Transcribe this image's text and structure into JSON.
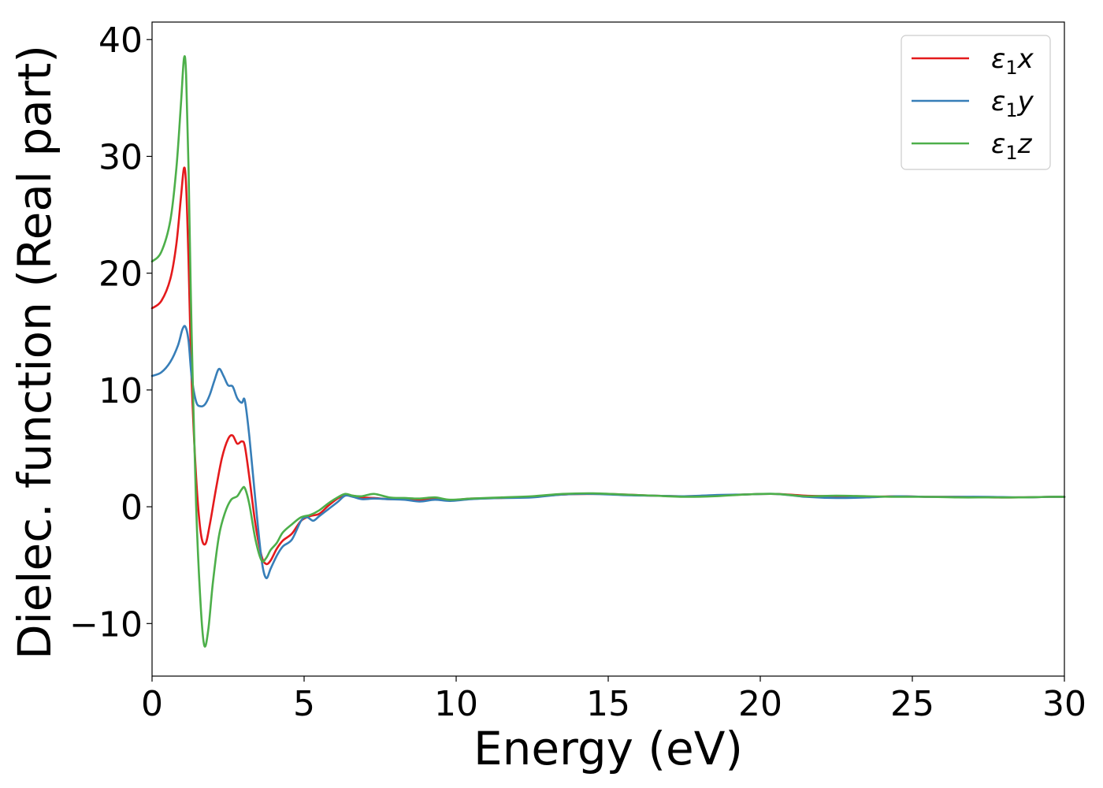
{
  "chart_data": {
    "type": "line",
    "xlabel": "Energy (eV)",
    "ylabel": "Dielec. function (Real part)",
    "xlim": [
      0,
      30
    ],
    "ylim": [
      -14.5,
      41.5
    ],
    "xticks": [
      0,
      5,
      10,
      15,
      20,
      25,
      30
    ],
    "yticks": [
      -10,
      0,
      10,
      20,
      30,
      40
    ],
    "xtick_labels": [
      "0",
      "5",
      "10",
      "15",
      "20",
      "25",
      "30"
    ],
    "ytick_labels": [
      "−10",
      "0",
      "10",
      "20",
      "30",
      "40"
    ],
    "grid": false,
    "legend_position": "top-right",
    "series": [
      {
        "name": "ε₁x",
        "legend_main": "ε",
        "legend_sub": "1",
        "legend_tail": "x",
        "color": "#e41a1c",
        "x": [
          0,
          0.3,
          0.6,
          0.8,
          0.95,
          1.05,
          1.12,
          1.2,
          1.3,
          1.45,
          1.6,
          1.75,
          1.9,
          2.1,
          2.3,
          2.5,
          2.65,
          2.8,
          2.95,
          3.05,
          3.2,
          3.4,
          3.6,
          3.75,
          3.9,
          4.1,
          4.3,
          4.6,
          4.9,
          5.2,
          5.5,
          5.8,
          6.1,
          6.35,
          6.6,
          6.9,
          7.3,
          7.8,
          8.3,
          8.8,
          9.3,
          9.8,
          10.5,
          11.5,
          12.5,
          13.5,
          14.5,
          15.5,
          16.5,
          17.5,
          18.5,
          19.5,
          20.5,
          21.5,
          22.5,
          23.5,
          24.5,
          25.5,
          26.5,
          27.5,
          28.5,
          29.5,
          30
        ],
        "y": [
          17,
          17.6,
          19.5,
          22.5,
          26.5,
          29,
          27.5,
          21,
          11,
          2.5,
          -2.2,
          -3.2,
          -1.5,
          1.5,
          4.2,
          5.8,
          6.1,
          5.4,
          5.6,
          5.2,
          2.5,
          -1.5,
          -4.2,
          -4.9,
          -4.6,
          -3.6,
          -2.9,
          -2.3,
          -1.2,
          -0.8,
          -0.6,
          0.1,
          0.7,
          1,
          0.95,
          0.8,
          0.75,
          0.65,
          0.7,
          0.6,
          0.65,
          0.55,
          0.7,
          0.75,
          0.85,
          1.05,
          1.1,
          1.05,
          0.95,
          0.9,
          0.95,
          1.05,
          1.1,
          0.95,
          0.9,
          0.85,
          0.9,
          0.85,
          0.85,
          0.8,
          0.8,
          0.85,
          0.85
        ]
      },
      {
        "name": "ε₁y",
        "legend_main": "ε",
        "legend_sub": "1",
        "legend_tail": "y",
        "color": "#377eb8",
        "x": [
          0,
          0.3,
          0.6,
          0.85,
          1.0,
          1.1,
          1.2,
          1.3,
          1.45,
          1.6,
          1.75,
          1.9,
          2.05,
          2.2,
          2.35,
          2.5,
          2.65,
          2.8,
          2.95,
          3.05,
          3.2,
          3.4,
          3.6,
          3.75,
          3.9,
          4.1,
          4.3,
          4.6,
          4.9,
          5.1,
          5.3,
          5.5,
          5.8,
          6.1,
          6.35,
          6.6,
          6.9,
          7.3,
          7.8,
          8.3,
          8.8,
          9.3,
          9.8,
          10.5,
          11.5,
          12.5,
          13.5,
          14.5,
          15.5,
          16.5,
          17.5,
          18.5,
          19.5,
          20.5,
          21.5,
          22.5,
          23.5,
          24.5,
          25.5,
          26.5,
          27.5,
          28.5,
          29.5,
          30
        ],
        "y": [
          11.2,
          11.5,
          12.4,
          13.8,
          15.2,
          15.4,
          14.2,
          11.2,
          9,
          8.6,
          8.8,
          9.6,
          10.8,
          11.8,
          11.2,
          10.4,
          10.3,
          9.3,
          8.9,
          9.1,
          6,
          0.5,
          -4.5,
          -6.1,
          -5.3,
          -4.2,
          -3.4,
          -2.8,
          -1.2,
          -0.9,
          -1.2,
          -0.8,
          -0.2,
          0.4,
          0.95,
          0.85,
          0.65,
          0.7,
          0.65,
          0.6,
          0.45,
          0.6,
          0.5,
          0.65,
          0.75,
          0.8,
          1.05,
          1.1,
          1.0,
          0.95,
          0.9,
          1.0,
          1.05,
          1.1,
          0.85,
          0.75,
          0.8,
          0.9,
          0.85,
          0.85,
          0.85,
          0.8,
          0.85,
          0.85
        ]
      },
      {
        "name": "ε₁z",
        "legend_main": "ε",
        "legend_sub": "1",
        "legend_tail": "z",
        "color": "#4daf4a",
        "x": [
          0,
          0.3,
          0.6,
          0.8,
          0.95,
          1.05,
          1.12,
          1.2,
          1.3,
          1.45,
          1.6,
          1.72,
          1.85,
          2.0,
          2.2,
          2.4,
          2.6,
          2.8,
          2.95,
          3.05,
          3.2,
          3.4,
          3.6,
          3.75,
          3.9,
          4.1,
          4.3,
          4.6,
          4.9,
          5.2,
          5.5,
          5.8,
          6.1,
          6.35,
          6.6,
          6.9,
          7.3,
          7.8,
          8.3,
          8.8,
          9.3,
          9.8,
          10.5,
          11.5,
          12.5,
          13.5,
          14.5,
          15.5,
          16.5,
          17.5,
          18.5,
          19.5,
          20.5,
          21.5,
          22.5,
          23.5,
          24.5,
          25.5,
          26.5,
          27.5,
          28.5,
          29.5,
          30
        ],
        "y": [
          21,
          21.8,
          24.5,
          29,
          34.5,
          38.4,
          37,
          29,
          15,
          0,
          -8.5,
          -11.9,
          -10.5,
          -6.5,
          -2.5,
          -0.5,
          0.6,
          0.9,
          1.5,
          1.6,
          0.2,
          -2.8,
          -4.6,
          -4.4,
          -3.7,
          -3.1,
          -2.2,
          -1.5,
          -0.9,
          -0.7,
          -0.3,
          0.3,
          0.8,
          1.1,
          0.95,
          0.9,
          1.1,
          0.8,
          0.75,
          0.7,
          0.8,
          0.6,
          0.7,
          0.8,
          0.9,
          1.1,
          1.15,
          1.05,
          0.95,
          0.85,
          0.9,
          1.05,
          1.1,
          0.9,
          0.95,
          0.9,
          0.85,
          0.85,
          0.8,
          0.8,
          0.8,
          0.85,
          0.85
        ]
      }
    ]
  }
}
